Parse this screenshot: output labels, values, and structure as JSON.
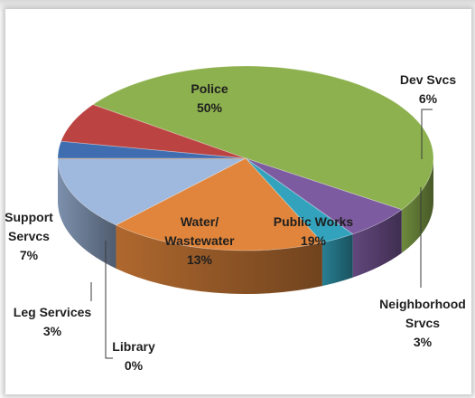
{
  "chart_data": {
    "type": "pie",
    "style": "3d",
    "title": "",
    "slices": [
      {
        "label": "Police",
        "value": 50,
        "display": "50%",
        "color": "#8db14e"
      },
      {
        "label": "Dev Svcs",
        "value": 6,
        "display": "6%",
        "color": "#7d5ba0"
      },
      {
        "label": "Neighborhood Srvcs",
        "label_lines": [
          "Neighborhood",
          "Srvcs"
        ],
        "value": 3,
        "display": "3%",
        "color": "#33a3bd"
      },
      {
        "label": "Public Works",
        "value": 19,
        "display": "19%",
        "color": "#e0853b"
      },
      {
        "label": "Water/ Wastewater",
        "label_lines": [
          "Water/",
          "Wastewater"
        ],
        "value": 13,
        "display": "13%",
        "color": "#9fb8dd"
      },
      {
        "label": "Library",
        "value": 0,
        "display": "0%",
        "color": "#e8a15e"
      },
      {
        "label": "Leg Services",
        "value": 3,
        "display": "3%",
        "color": "#3f6db0"
      },
      {
        "label": "Support Servcs",
        "label_lines": [
          "Support",
          "Servcs"
        ],
        "value": 7,
        "display": "7%",
        "color": "#bb4442"
      }
    ],
    "legend": "none",
    "data_labels": "category and percent"
  }
}
